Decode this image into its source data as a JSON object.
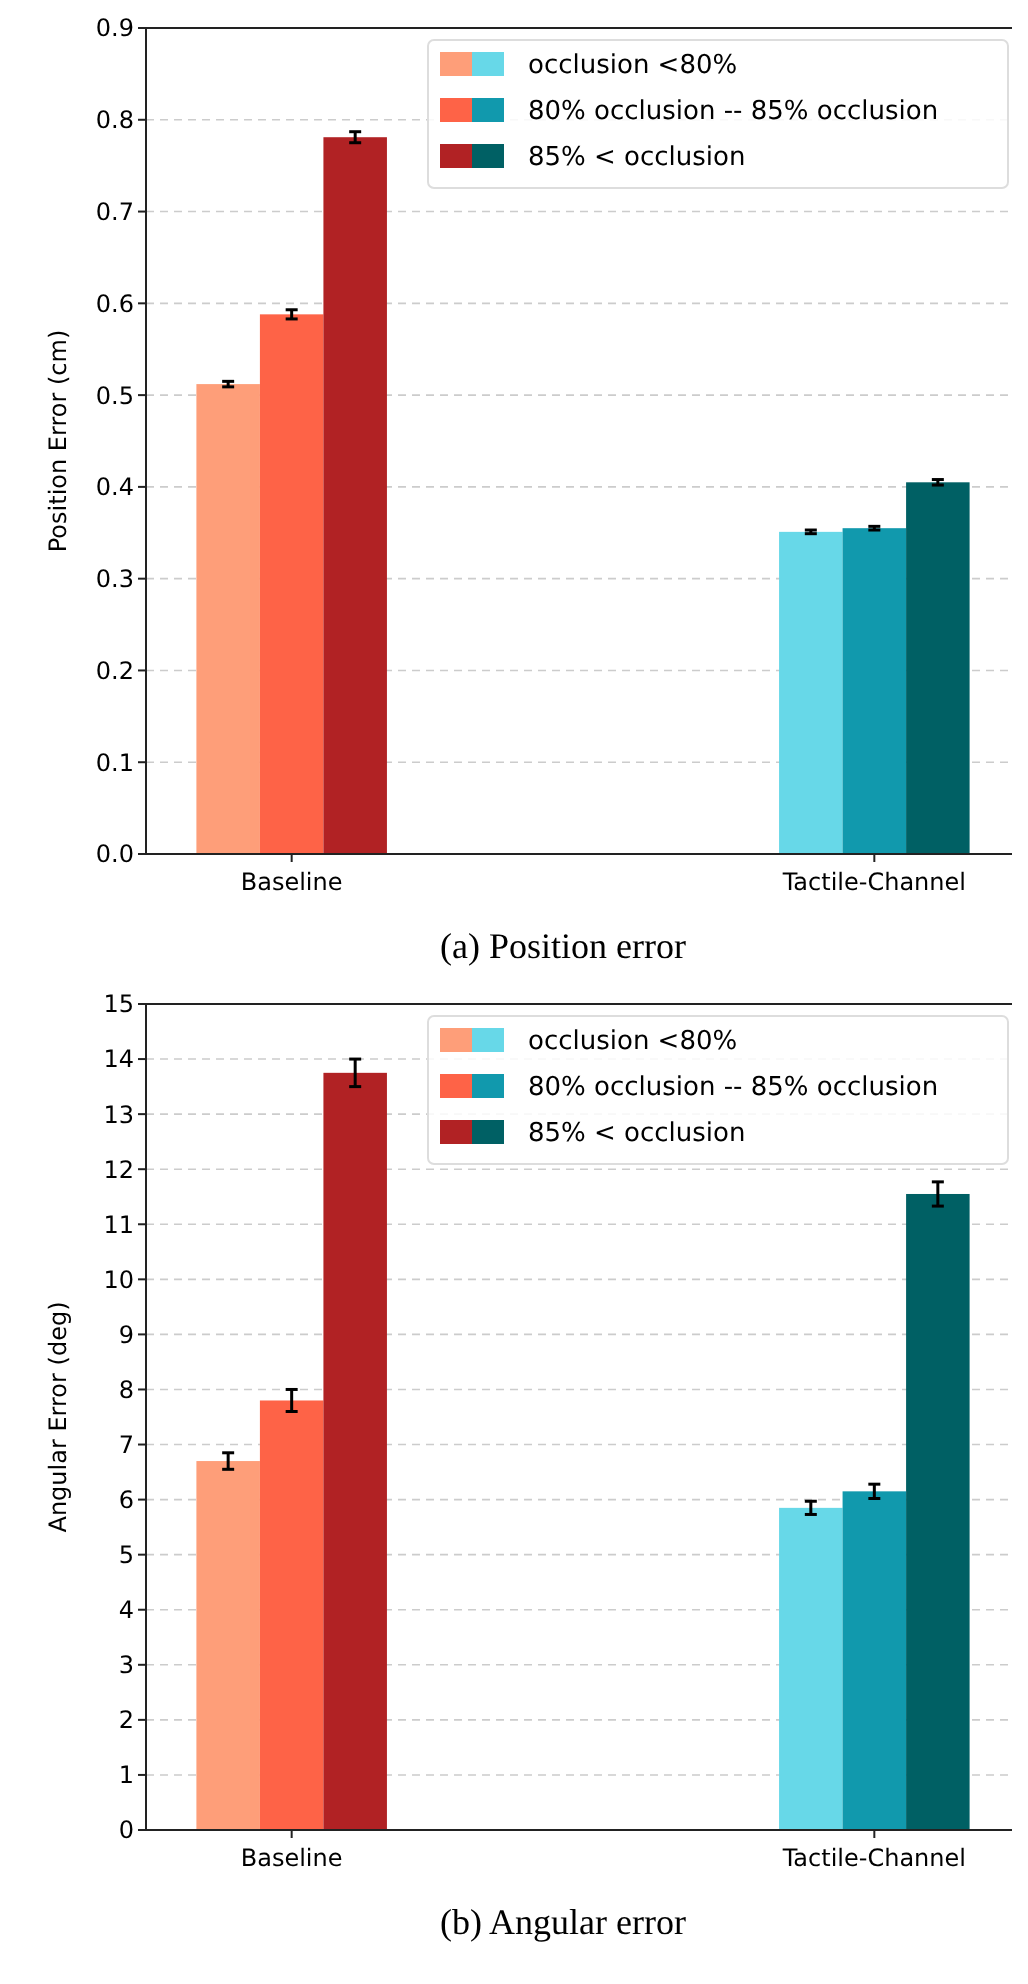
{
  "chart_data": [
    {
      "type": "bar",
      "title": "(a) Position error",
      "ylabel": "Position Error (cm)",
      "categories": [
        "Baseline",
        "Tactile-Channel"
      ],
      "ylim": [
        0,
        0.9
      ],
      "yticks": [
        {
          "value": 0,
          "label": "0.0"
        },
        0.1,
        0.2,
        0.3,
        0.4,
        0.5,
        0.6,
        0.7,
        0.8,
        0.9
      ],
      "grid": "y",
      "legend": "top right",
      "series": [
        {
          "name": "occlusion <80%",
          "colors": [
            "#fe9e79",
            "#67d8e8"
          ],
          "values": [
            0.512,
            0.351
          ],
          "errors": [
            0.003,
            0.002
          ]
        },
        {
          "name": "80% occlusion -- 85% occlusion",
          "colors": [
            "#fe6347",
            "#1199ad"
          ],
          "values": [
            0.588,
            0.355
          ],
          "errors": [
            0.005,
            0.002
          ]
        },
        {
          "name": "85% < occlusion",
          "colors": [
            "#b12224",
            "#006064"
          ],
          "values": [
            0.781,
            0.405
          ],
          "errors": [
            0.006,
            0.003
          ]
        }
      ]
    },
    {
      "type": "bar",
      "title": "(b) Angular error",
      "ylabel": "Angular Error (deg)",
      "categories": [
        "Baseline",
        "Tactile-Channel"
      ],
      "ylim": [
        0,
        15
      ],
      "yticks": [
        0,
        1,
        2,
        3,
        4,
        5,
        6,
        7,
        8,
        9,
        10,
        11,
        12,
        13,
        14,
        15
      ],
      "grid": "y",
      "legend": "top right",
      "series": [
        {
          "name": "occlusion <80%",
          "colors": [
            "#fe9e79",
            "#67d8e8"
          ],
          "values": [
            6.7,
            5.85
          ],
          "errors": [
            0.15,
            0.12
          ]
        },
        {
          "name": "80% occlusion -- 85% occlusion",
          "colors": [
            "#fe6347",
            "#1199ad"
          ],
          "values": [
            7.8,
            6.15
          ],
          "errors": [
            0.2,
            0.13
          ]
        },
        {
          "name": "85% < occlusion",
          "colors": [
            "#b12224",
            "#006064"
          ],
          "values": [
            13.75,
            11.55
          ],
          "errors": [
            0.25,
            0.22
          ]
        }
      ]
    }
  ]
}
